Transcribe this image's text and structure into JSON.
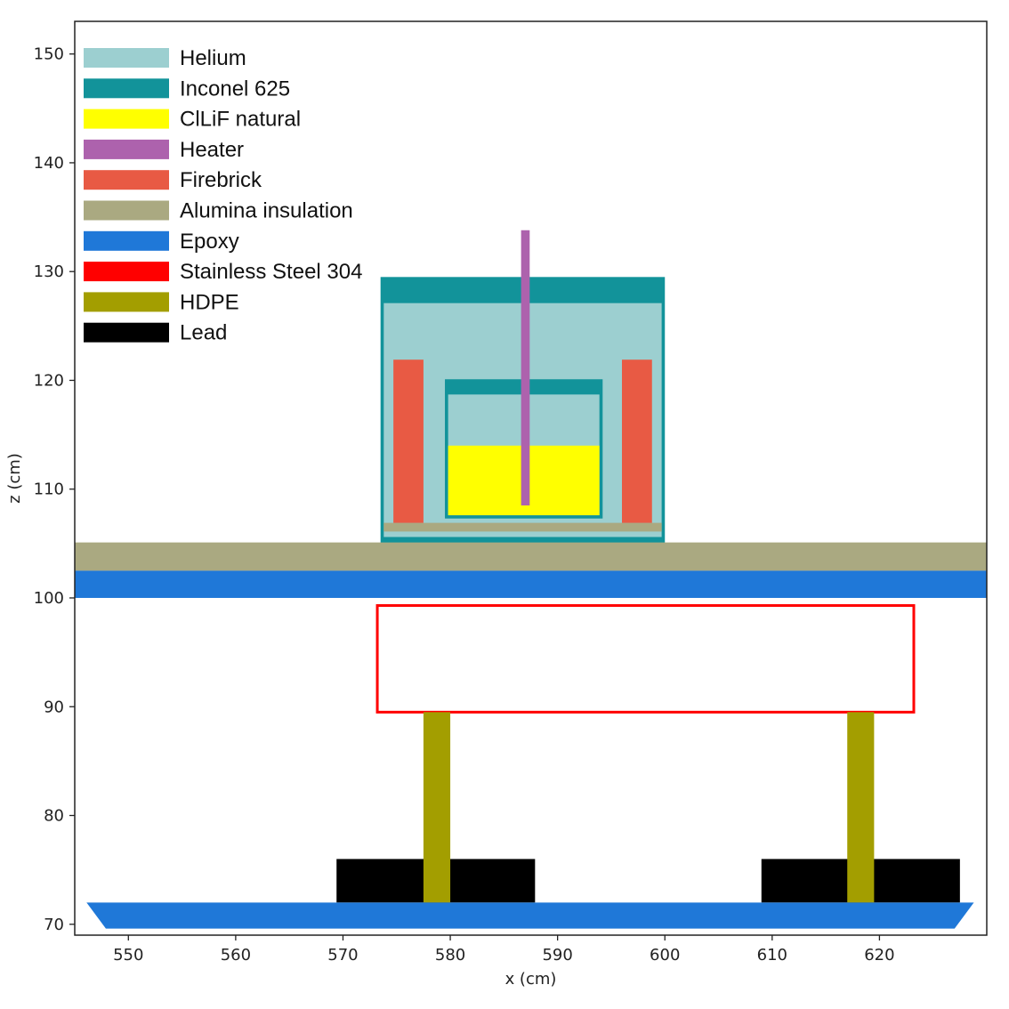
{
  "chart_data": {
    "type": "geometry-cross-section",
    "xlabel": "x (cm)",
    "ylabel": "z (cm)",
    "xlim": [
      545,
      630
    ],
    "ylim": [
      69,
      153
    ],
    "x_ticks": [
      550,
      560,
      570,
      580,
      590,
      600,
      610,
      620
    ],
    "y_ticks": [
      70,
      80,
      90,
      100,
      110,
      120,
      130,
      140,
      150
    ],
    "legend_position": "top-left",
    "materials": [
      {
        "name": "Helium",
        "color": "#9ccfd0"
      },
      {
        "name": "Inconel 625",
        "color": "#12939a"
      },
      {
        "name": "ClLiF natural",
        "color": "#ffff00"
      },
      {
        "name": "Heater",
        "color": "#ad62ad"
      },
      {
        "name": "Firebrick",
        "color": "#e85a44"
      },
      {
        "name": "Alumina insulation",
        "color": "#aaa981"
      },
      {
        "name": "Epoxy",
        "color": "#1f78d8"
      },
      {
        "name": "Stainless Steel 304",
        "color": "#ff0000"
      },
      {
        "name": "HDPE",
        "color": "#a39e00"
      },
      {
        "name": "Lead",
        "color": "#000000"
      }
    ],
    "regions": [
      {
        "material": "Inconel 625",
        "kind": "rect",
        "x": [
          573.5,
          600
        ],
        "z": [
          105,
          129.5
        ],
        "label": "furnace-outer-shell"
      },
      {
        "material": "Helium",
        "kind": "rect",
        "x": [
          573.8,
          599.7
        ],
        "z": [
          105.6,
          127.1
        ],
        "label": "furnace-gas-space"
      },
      {
        "material": "Alumina insulation",
        "kind": "rect",
        "x": [
          573.8,
          599.7
        ],
        "z": [
          106.1,
          106.9
        ],
        "label": "furnace-floor-insulation"
      },
      {
        "material": "Firebrick",
        "kind": "rect",
        "x": [
          574.7,
          577.5
        ],
        "z": [
          106.9,
          121.9
        ],
        "label": "firebrick-left"
      },
      {
        "material": "Firebrick",
        "kind": "rect",
        "x": [
          596.0,
          598.8
        ],
        "z": [
          106.9,
          121.9
        ],
        "label": "firebrick-right"
      },
      {
        "material": "Inconel 625",
        "kind": "rect",
        "x": [
          579.5,
          594.2
        ],
        "z": [
          107.3,
          120.1
        ],
        "label": "crucible"
      },
      {
        "material": "Helium",
        "kind": "rect",
        "x": [
          579.8,
          593.9
        ],
        "z": [
          107.6,
          118.7
        ],
        "label": "crucible-headspace"
      },
      {
        "material": "ClLiF natural",
        "kind": "rect",
        "x": [
          579.8,
          593.9
        ],
        "z": [
          107.6,
          114.0
        ],
        "label": "salt"
      },
      {
        "material": "Heater",
        "kind": "rect",
        "x": [
          586.6,
          587.4
        ],
        "z": [
          108.5,
          133.8
        ],
        "label": "heater-rod"
      },
      {
        "material": "Alumina insulation",
        "kind": "rect",
        "x": [
          545,
          630
        ],
        "z": [
          102.5,
          105.1
        ],
        "label": "insulation-layer"
      },
      {
        "material": "Epoxy",
        "kind": "rect",
        "x": [
          545,
          630
        ],
        "z": [
          100.0,
          102.5
        ],
        "label": "epoxy-layer"
      },
      {
        "material": "Stainless Steel 304",
        "kind": "outline",
        "x": [
          573.2,
          623.2
        ],
        "z": [
          89.5,
          99.3
        ],
        "label": "steel-frame"
      },
      {
        "material": "Lead",
        "kind": "rect",
        "x": [
          569.4,
          587.9
        ],
        "z": [
          72.0,
          76.0
        ],
        "label": "lead-block-left"
      },
      {
        "material": "Lead",
        "kind": "rect",
        "x": [
          609.0,
          627.5
        ],
        "z": [
          72.0,
          76.0
        ],
        "label": "lead-block-right"
      },
      {
        "material": "HDPE",
        "kind": "rect",
        "x": [
          577.5,
          580.0
        ],
        "z": [
          72.0,
          89.5
        ],
        "label": "hdpe-post-left"
      },
      {
        "material": "HDPE",
        "kind": "rect",
        "x": [
          617.0,
          619.5
        ],
        "z": [
          72.0,
          89.5
        ],
        "label": "hdpe-post-right"
      },
      {
        "material": "Epoxy",
        "kind": "polygon",
        "points": [
          [
            546.1,
            72.0
          ],
          [
            628.8,
            72.0
          ],
          [
            627.0,
            69.6
          ],
          [
            547.9,
            69.6
          ]
        ],
        "label": "epoxy-base"
      }
    ]
  }
}
